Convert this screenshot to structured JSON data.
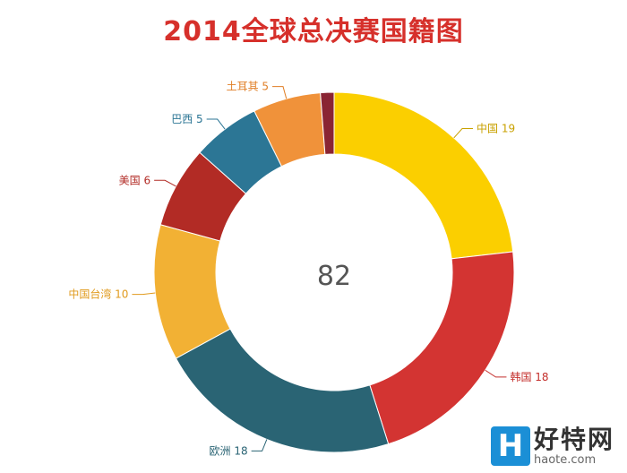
{
  "chart_data": {
    "type": "donut",
    "title": "2014全球总决赛国籍图",
    "total_label": "82",
    "slices": [
      {
        "name": "中国",
        "value": 19,
        "color": "#fbcf00",
        "side": "right",
        "label_color": "#c9a100"
      },
      {
        "name": "韩国",
        "value": 18,
        "color": "#d33432",
        "side": "right",
        "label_color": "#c42f2c"
      },
      {
        "name": "欧洲",
        "value": 18,
        "color": "#2a6474",
        "side": "left",
        "label_color": "#2a6474"
      },
      {
        "name": "中国台湾",
        "value": 10,
        "color": "#f2b134",
        "side": "left",
        "label_color": "#e09a1c"
      },
      {
        "name": "美国",
        "value": 6,
        "color": "#b22b25",
        "side": "left",
        "label_color": "#b22b25"
      },
      {
        "name": "巴西",
        "value": 5,
        "color": "#2c7695",
        "side": "left",
        "label_color": "#2c7695"
      },
      {
        "name": "土耳其",
        "value": 5,
        "color": "#f0923a",
        "side": "left",
        "label_color": "#e07e25"
      },
      {
        "name": "",
        "value": 1,
        "color": "#8a2433",
        "side": "none",
        "label_color": "#8a2433"
      }
    ]
  },
  "watermark": {
    "logo_letter": "H",
    "name": "好特网",
    "url": "haote.com"
  }
}
